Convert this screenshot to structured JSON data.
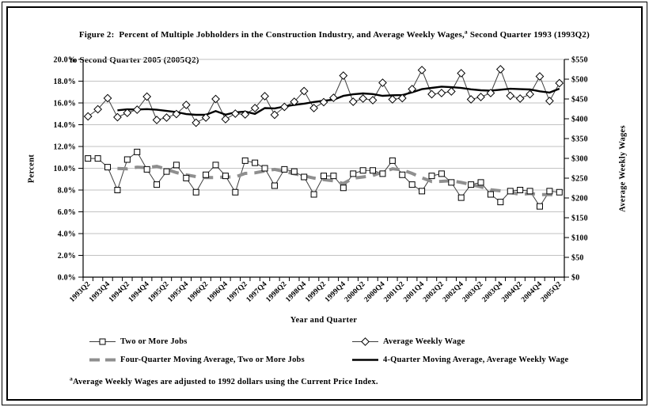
{
  "figure": {
    "title_line1_pre": "Figure 2:  Percent of Multiple Jobholders in the Construction Industry, and Average Weekly Wages,",
    "title_sup": "a",
    "title_line1_post": " Second Quarter 1993 (1993Q2)",
    "title_line2": "to Second Quarter 2005 (2005Q2)",
    "footnote_sup": "a",
    "footnote_text": "Average Weekly Wages are adjusted to 1992 dollars using the Current Price Index."
  },
  "chart_data": {
    "type": "line",
    "xlabel": "Year and Quarter",
    "x": [
      "1993Q2",
      "1993Q3",
      "1993Q4",
      "1994Q1",
      "1994Q2",
      "1994Q3",
      "1994Q4",
      "1995Q1",
      "1995Q2",
      "1995Q3",
      "1995Q4",
      "1996Q1",
      "1996Q2",
      "1996Q3",
      "1996Q4",
      "1997Q1",
      "1997Q2",
      "1997Q3",
      "1997Q4",
      "1998Q1",
      "1998Q2",
      "1998Q3",
      "1998Q4",
      "1999Q1",
      "1999Q2",
      "1999Q3",
      "1999Q4",
      "2000Q1",
      "2000Q2",
      "2000Q3",
      "2000Q4",
      "2001Q1",
      "2001Q2",
      "2001Q3",
      "2001Q4",
      "2002Q1",
      "2002Q2",
      "2002Q3",
      "2002Q4",
      "2003Q1",
      "2003Q2",
      "2003Q3",
      "2003Q4",
      "2004Q1",
      "2004Q2",
      "2004Q3",
      "2004Q4",
      "2005Q1",
      "2005Q2"
    ],
    "x_label_every": 2,
    "left_axis": {
      "label": "Percent",
      "min": 0,
      "max": 20,
      "step": 2,
      "format": "percent"
    },
    "right_axis": {
      "label": "Average Weekly Wages",
      "min": 0,
      "max": 550,
      "step": 50,
      "format": "dollar"
    },
    "grid_color": "#c2c2c2",
    "series": [
      {
        "name": "Two or More Jobs",
        "axis": "left",
        "marker": "square",
        "line_color": "#3d3d3d",
        "values": [
          10.9,
          10.9,
          10.1,
          8.0,
          10.8,
          11.5,
          9.9,
          8.5,
          9.7,
          10.3,
          9.1,
          7.8,
          9.4,
          10.3,
          9.3,
          7.8,
          10.7,
          10.5,
          10.0,
          8.4,
          9.9,
          9.7,
          9.2,
          7.6,
          9.3,
          9.3,
          8.2,
          9.5,
          9.8,
          9.8,
          9.5,
          10.7,
          9.4,
          8.5,
          7.9,
          9.3,
          9.5,
          8.7,
          7.3,
          8.5,
          8.7,
          7.6,
          6.9,
          7.9,
          8.0,
          7.9,
          6.5,
          7.9,
          7.8
        ]
      },
      {
        "name": "Average Weekly Wage",
        "axis": "right",
        "marker": "diamond",
        "line_color": "#3d3d3d",
        "values": [
          406,
          424,
          452,
          404,
          415,
          423,
          456,
          397,
          403,
          412,
          435,
          390,
          403,
          450,
          399,
          413,
          411,
          427,
          457,
          410,
          430,
          443,
          470,
          427,
          442,
          453,
          509,
          443,
          451,
          447,
          491,
          449,
          452,
          475,
          523,
          462,
          465,
          469,
          515,
          449,
          455,
          465,
          525,
          458,
          451,
          462,
          507,
          445,
          490
        ]
      },
      {
        "name": "Four-Quarter Moving Average, Two or More Jobs",
        "axis": "left",
        "style": "dashed-gray",
        "line_color": "#8f8f8f",
        "values": [
          null,
          null,
          null,
          9.98,
          9.95,
          10.1,
          10.05,
          10.18,
          9.9,
          9.6,
          9.4,
          9.23,
          9.15,
          9.15,
          9.2,
          9.2,
          9.53,
          9.58,
          9.75,
          9.9,
          9.7,
          9.5,
          9.3,
          9.1,
          8.95,
          8.85,
          8.6,
          9.08,
          9.2,
          9.33,
          9.65,
          9.95,
          9.85,
          9.53,
          9.13,
          8.78,
          8.8,
          8.85,
          8.7,
          8.5,
          8.3,
          8.03,
          7.93,
          7.78,
          7.6,
          7.68,
          7.58,
          7.58,
          7.53
        ]
      },
      {
        "name": "4-Quarter Moving Average, Average Weekly Wage",
        "axis": "right",
        "style": "solid-black",
        "line_color": "#000000",
        "values": [
          null,
          null,
          null,
          421.5,
          423.75,
          423.5,
          424.5,
          422.75,
          419.75,
          417,
          411.75,
          410,
          410,
          419.5,
          410.5,
          416.25,
          418.25,
          412.5,
          427,
          426.25,
          431,
          435,
          438.25,
          442.5,
          445.5,
          448,
          457.75,
          461.75,
          464,
          462.5,
          458,
          459.5,
          459.75,
          466.75,
          474.75,
          478,
          481.25,
          479.75,
          477.75,
          474.5,
          472,
          471,
          473.5,
          475.75,
          474.75,
          474,
          469.5,
          466.25,
          476
        ]
      }
    ],
    "legend_position": "bottom"
  }
}
